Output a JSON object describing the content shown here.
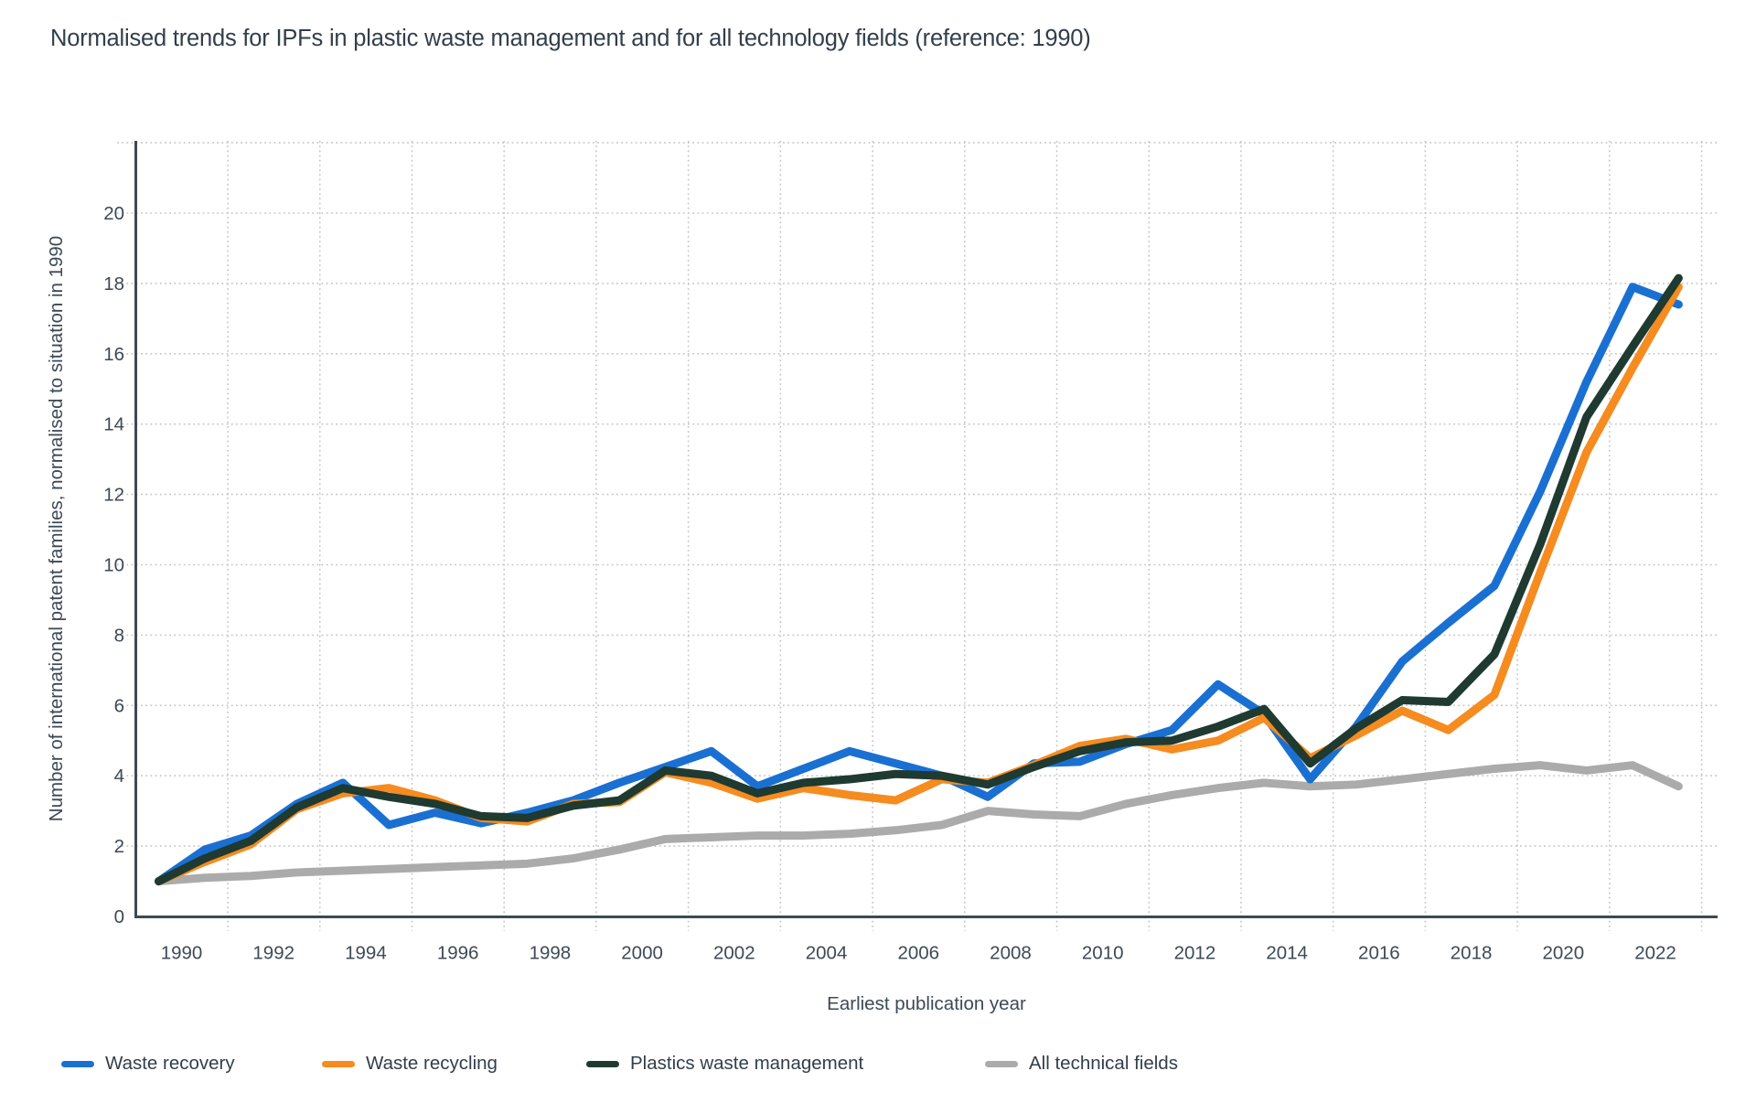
{
  "title": "Normalised trends for IPFs in plastic waste management and for all technology fields (reference: 1990)",
  "chart_data": {
    "type": "line",
    "x": [
      1990,
      1991,
      1992,
      1993,
      1994,
      1995,
      1996,
      1997,
      1998,
      1999,
      2000,
      2001,
      2002,
      2003,
      2004,
      2005,
      2006,
      2007,
      2008,
      2009,
      2010,
      2011,
      2012,
      2013,
      2014,
      2015,
      2016,
      2017,
      2018,
      2019,
      2020,
      2021,
      2022,
      2023
    ],
    "series": [
      {
        "name": "Waste recovery",
        "color": "#1a70d2",
        "values": [
          1.0,
          1.9,
          2.3,
          3.2,
          3.8,
          2.6,
          2.95,
          2.65,
          2.95,
          3.3,
          3.8,
          4.25,
          4.7,
          3.7,
          4.2,
          4.7,
          4.35,
          4.0,
          3.4,
          4.35,
          4.4,
          4.9,
          5.3,
          6.6,
          5.75,
          3.9,
          5.4,
          7.25,
          8.35,
          9.4,
          12.1,
          15.2,
          17.9,
          17.4
        ]
      },
      {
        "name": "Waste recycling",
        "color": "#f68b1f",
        "values": [
          1.0,
          1.55,
          2.05,
          3.05,
          3.5,
          3.65,
          3.3,
          2.8,
          2.7,
          3.2,
          3.25,
          4.1,
          3.8,
          3.35,
          3.65,
          3.45,
          3.3,
          3.9,
          3.8,
          4.3,
          4.85,
          5.05,
          4.75,
          5.0,
          5.65,
          4.5,
          5.15,
          5.85,
          5.3,
          6.3,
          9.8,
          13.2,
          15.6,
          17.9
        ]
      },
      {
        "name": "Plastics waste management",
        "color": "#1f3a31",
        "values": [
          1.0,
          1.65,
          2.15,
          3.1,
          3.65,
          3.4,
          3.2,
          2.85,
          2.8,
          3.15,
          3.3,
          4.15,
          4.0,
          3.5,
          3.8,
          3.9,
          4.05,
          4.0,
          3.75,
          4.25,
          4.7,
          4.95,
          5.0,
          5.4,
          5.9,
          4.35,
          5.35,
          6.15,
          6.1,
          7.45,
          10.6,
          14.2,
          16.2,
          18.15
        ]
      },
      {
        "name": "All technical fields",
        "color": "#ababab",
        "values": [
          1.0,
          1.1,
          1.15,
          1.25,
          1.3,
          1.35,
          1.4,
          1.45,
          1.5,
          1.65,
          1.9,
          2.2,
          2.25,
          2.3,
          2.3,
          2.35,
          2.45,
          2.6,
          3.0,
          2.9,
          2.85,
          3.2,
          3.45,
          3.65,
          3.8,
          3.7,
          3.75,
          3.9,
          4.05,
          4.2,
          4.3,
          4.15,
          4.3,
          3.7
        ]
      }
    ],
    "xlabel": "Earliest publication year",
    "ylabel": "Number of international patent families, normalised to situation in 1990",
    "ylim": [
      0,
      22
    ],
    "yticks": [
      0,
      2,
      4,
      6,
      8,
      10,
      12,
      14,
      16,
      18,
      20
    ],
    "xtick_labels": [
      "1990",
      "1992",
      "1994",
      "1996",
      "1998",
      "2000",
      "2002",
      "2004",
      "2006",
      "2008",
      "2010",
      "2012",
      "2014",
      "2016",
      "2018",
      "2020",
      "2022"
    ],
    "grid": "dotted",
    "legend_position": "bottom"
  },
  "colors": {
    "background": "#ffffff",
    "axis": "#3d4a56",
    "gridline": "#c6c6c6",
    "text": "#3d4956",
    "title_text": "#323e4a"
  }
}
